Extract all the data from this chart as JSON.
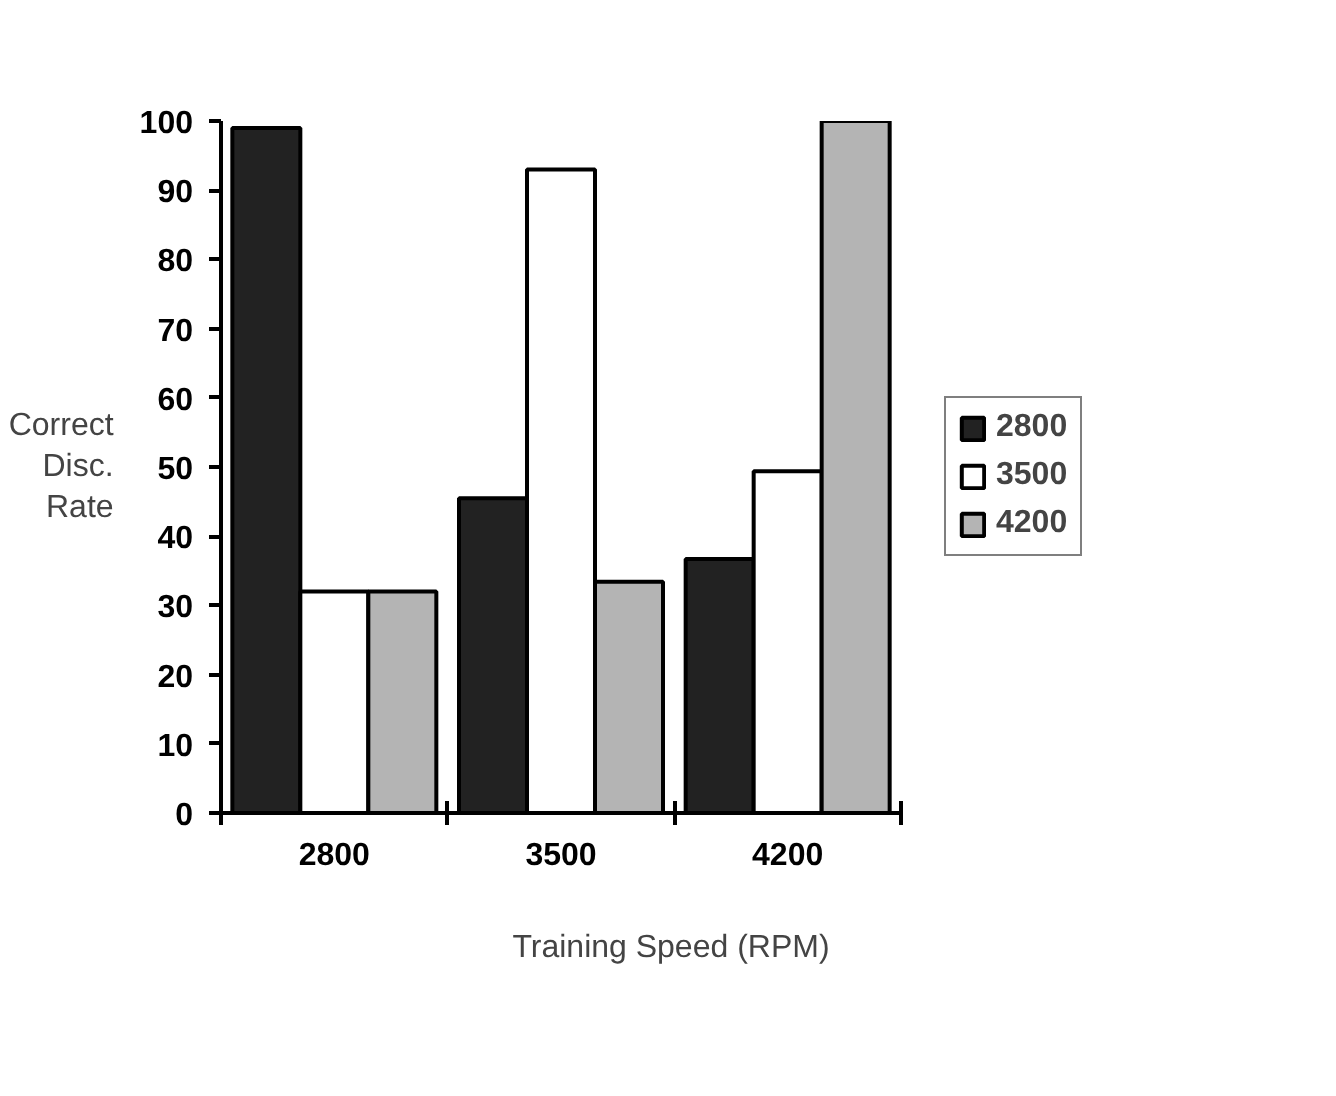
{
  "chart_data": {
    "type": "bar",
    "xlabel": "Training Speed (RPM)",
    "ylabel": "Correct\nDisc.\nRate",
    "categories": [
      "2800",
      "3500",
      "4200"
    ],
    "series": [
      {
        "name": "2800",
        "color": "#222222",
        "values": [
          99,
          45.5,
          36.7
        ]
      },
      {
        "name": "3500",
        "color": "#ffffff",
        "values": [
          32,
          93,
          49.4
        ]
      },
      {
        "name": "4200",
        "color": "#b4b4b4",
        "values": [
          32,
          33.4,
          100
        ]
      }
    ],
    "ylim": [
      0,
      100
    ],
    "yticks": [
      0,
      10,
      20,
      30,
      40,
      50,
      60,
      70,
      80,
      90,
      100
    ],
    "grid": false,
    "legend": "right"
  }
}
